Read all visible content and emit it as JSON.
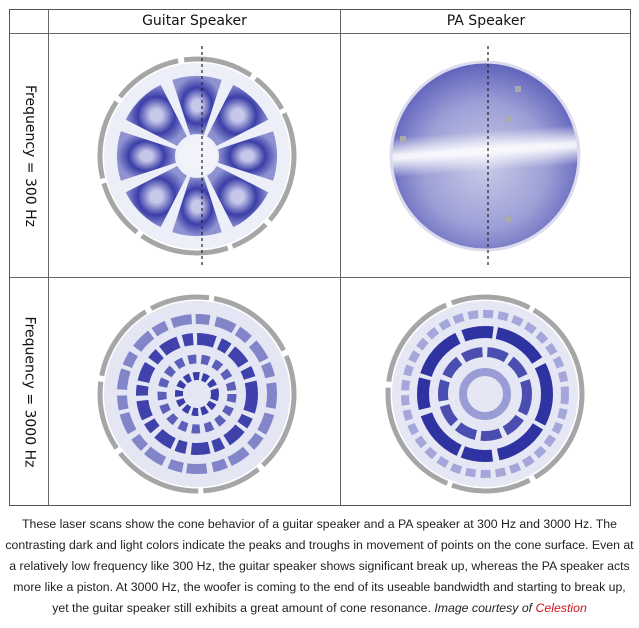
{
  "figure": {
    "columns": [
      "Guitar Speaker",
      "PA Speaker"
    ],
    "rows": [
      "Frequency = 300 Hz",
      "Frequency = 3000 Hz"
    ],
    "scans": [
      {
        "speaker": "Guitar Speaker",
        "frequency": "300 Hz",
        "pattern": "radial-wedges"
      },
      {
        "speaker": "PA Speaker",
        "frequency": "300 Hz",
        "pattern": "uniform-piston"
      },
      {
        "speaker": "Guitar Speaker",
        "frequency": "3000 Hz",
        "pattern": "concentric-rings"
      },
      {
        "speaker": "PA Speaker",
        "frequency": "3000 Hz",
        "pattern": "concentric-rings"
      }
    ],
    "colors": {
      "scan_blue": "#2b2fa0",
      "rim_gray": "#a6a6a6",
      "brand_red": "#d0141c"
    }
  },
  "caption": {
    "text": "These laser scans show the cone behavior of a guitar speaker and a PA speaker at 300 Hz and 3000 Hz. The contrasting dark and light colors indicate the peaks and troughs in movement of points on the cone surface. Even at a relatively low frequency like 300 Hz, the guitar speaker shows significant break up, whereas the PA speaker acts more like a piston. At 3000 Hz, the woofer is coming to the end of its useable bandwidth and starting to break up, yet the guitar speaker still exhibits a great amount of cone resonance.",
    "credit_prefix": "Image courtesy of",
    "credit_link": "Celestion"
  }
}
